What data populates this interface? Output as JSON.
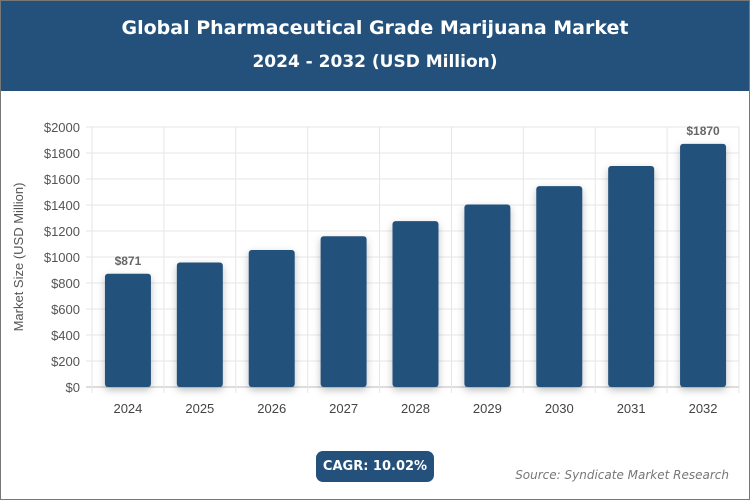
{
  "header": {
    "title": "Global Pharmaceutical Grade Marijuana Market",
    "subtitle": "2024 - 2032 (USD Million)"
  },
  "chart_data": {
    "type": "bar",
    "title": "Global Pharmaceutical Grade Marijuana Market",
    "subtitle": "2024 - 2032 (USD Million)",
    "ylabel": "Market Size (USD Million)",
    "xlabel": "",
    "categories": [
      "2024",
      "2025",
      "2026",
      "2027",
      "2028",
      "2029",
      "2030",
      "2031",
      "2032"
    ],
    "values": [
      871,
      958,
      1054,
      1160,
      1276,
      1404,
      1545,
      1700,
      1870
    ],
    "ylim": [
      0,
      2000
    ],
    "yticks": [
      0,
      200,
      400,
      600,
      800,
      1000,
      1200,
      1400,
      1600,
      1800,
      2000
    ],
    "ytick_prefix": "$",
    "data_labels": {
      "0": "$871",
      "8": "$1870"
    },
    "grid": true,
    "bar_color": "#24517b"
  },
  "footer": {
    "cagr": "CAGR: 10.02%",
    "source": "Source: Syndicate Market Research"
  }
}
